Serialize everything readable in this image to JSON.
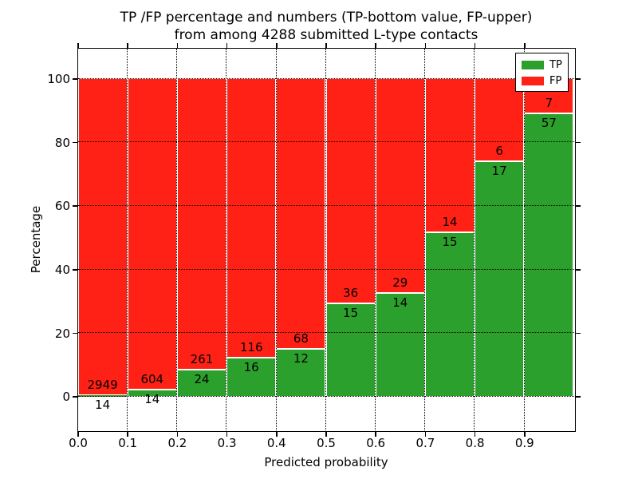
{
  "title": {
    "line1": "TP /FP percentage and numbers (TP-bottom value, FP-upper)",
    "line2": "from among 4288 submitted L-type contacts"
  },
  "chart_data": {
    "type": "bar",
    "subtype": "stacked-percentage-histogram",
    "title": "TP /FP percentage and numbers (TP-bottom value, FP-upper)\nfrom among 4288 submitted L-type contacts",
    "xlabel": "Predicted probability",
    "ylabel": "Percentage",
    "total_contacts": 4288,
    "categories": [
      "0.0-0.1",
      "0.1-0.2",
      "0.2-0.3",
      "0.3-0.4",
      "0.4-0.5",
      "0.5-0.6",
      "0.6-0.7",
      "0.7-0.8",
      "0.8-0.9",
      "0.9-1.0"
    ],
    "bin_edges": [
      0.0,
      0.1,
      0.2,
      0.3,
      0.4,
      0.5,
      0.6,
      0.7,
      0.8,
      0.9,
      1.0
    ],
    "series": [
      {
        "name": "TP",
        "color": "#2ca02c",
        "counts": [
          14,
          14,
          24,
          16,
          12,
          15,
          14,
          15,
          17,
          57
        ]
      },
      {
        "name": "FP",
        "color": "#ff2116",
        "counts": [
          2949,
          604,
          261,
          116,
          68,
          36,
          29,
          14,
          6,
          7
        ]
      }
    ],
    "tp_percent": [
      0.47,
      2.27,
      8.42,
      12.12,
      15.0,
      29.41,
      32.56,
      51.72,
      73.91,
      89.06
    ],
    "x_ticks": [
      "0.0",
      "0.1",
      "0.2",
      "0.3",
      "0.4",
      "0.5",
      "0.6",
      "0.7",
      "0.8",
      "0.9"
    ],
    "y_ticks": [
      0,
      20,
      40,
      60,
      80,
      100
    ],
    "xlim": [
      0.0,
      1.0
    ],
    "ylim": [
      -10.5,
      109.5
    ],
    "grid": "dotted-black-both-axes",
    "bar_edge_color": "#ffffff",
    "legend": {
      "position": "upper-right",
      "entries": [
        {
          "label": "TP",
          "color": "#2ca02c"
        },
        {
          "label": "FP",
          "color": "#ff2116"
        }
      ]
    }
  }
}
